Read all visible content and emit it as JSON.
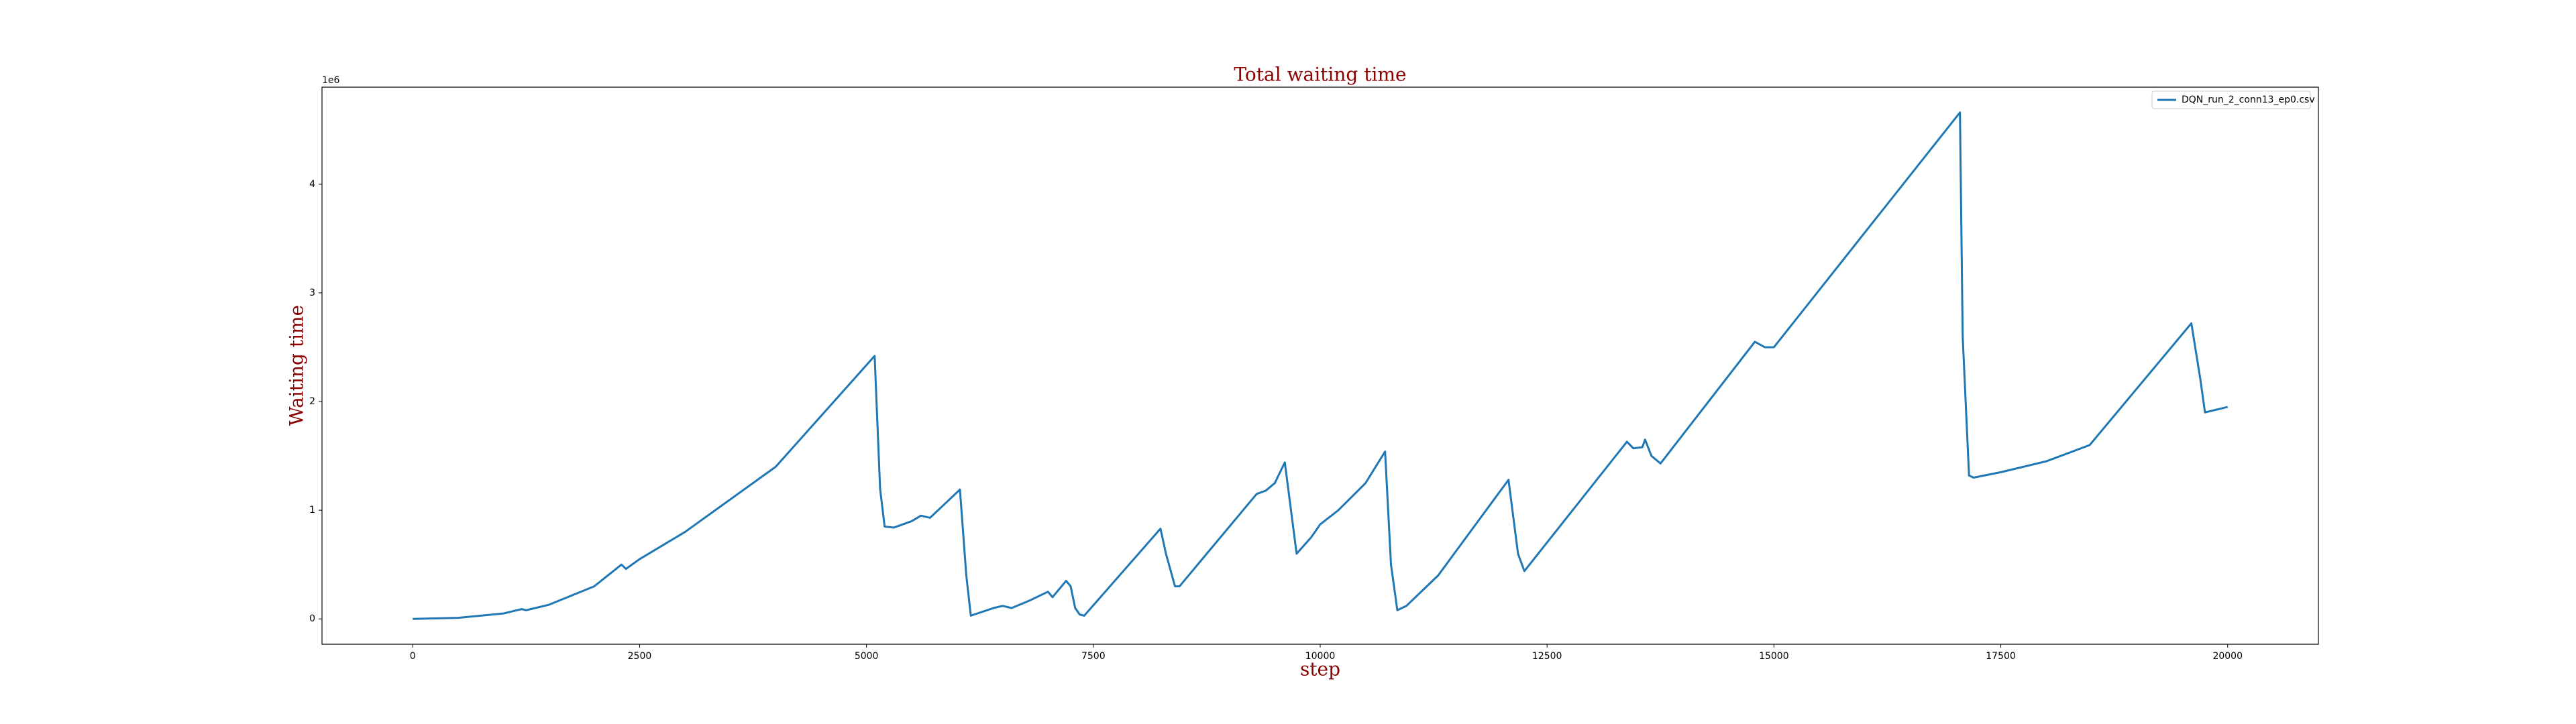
{
  "chart_data": {
    "type": "line",
    "title": "Total waiting time",
    "x_label": "step",
    "y_label": "Waiting time",
    "y_offset_label": "1e6",
    "x": [
      0,
      500,
      1000,
      1200,
      1250,
      1500,
      2000,
      2300,
      2350,
      2500,
      3000,
      4000,
      5090,
      5150,
      5200,
      5300,
      5500,
      5600,
      5700,
      6030,
      6100,
      6150,
      6400,
      6500,
      6600,
      6800,
      7000,
      7050,
      7200,
      7250,
      7300,
      7350,
      7400,
      8240,
      8300,
      8400,
      8450,
      9300,
      9400,
      9500,
      9610,
      9740,
      9900,
      10000,
      10200,
      10500,
      10715,
      10780,
      10850,
      10950,
      11300,
      12075,
      12180,
      12250,
      13380,
      13450,
      13550,
      13580,
      13650,
      13750,
      14790,
      14900,
      15000,
      17050,
      17080,
      17150,
      17200,
      17500,
      18000,
      18480,
      19600,
      19700,
      19750,
      20000
    ],
    "series": [
      {
        "name": "DQN_run_2_conn13_ep0.csv",
        "color": "#1f77b4",
        "values": [
          0,
          0.01,
          0.05,
          0.09,
          0.08,
          0.13,
          0.3,
          0.5,
          0.46,
          0.55,
          0.8,
          1.4,
          2.42,
          1.2,
          0.85,
          0.84,
          0.9,
          0.95,
          0.93,
          1.19,
          0.4,
          0.03,
          0.1,
          0.12,
          0.1,
          0.17,
          0.25,
          0.2,
          0.35,
          0.3,
          0.1,
          0.04,
          0.03,
          0.83,
          0.6,
          0.3,
          0.3,
          1.15,
          1.18,
          1.25,
          1.44,
          0.6,
          0.75,
          0.87,
          1.0,
          1.25,
          1.54,
          0.5,
          0.08,
          0.12,
          0.4,
          1.28,
          0.6,
          0.44,
          1.63,
          1.57,
          1.58,
          1.65,
          1.5,
          1.43,
          2.55,
          2.5,
          2.5,
          4.66,
          2.6,
          1.32,
          1.3,
          1.35,
          1.45,
          1.6,
          2.72,
          2.2,
          1.9,
          1.95
        ]
      }
    ],
    "xlim": [
      -1000,
      21000
    ],
    "ylim": [
      -0.233,
      4.893
    ],
    "xticks": [
      0,
      2500,
      5000,
      7500,
      10000,
      12500,
      15000,
      17500,
      20000
    ],
    "yticks": [
      0,
      1,
      2,
      3,
      4
    ],
    "legend": "upper right"
  }
}
